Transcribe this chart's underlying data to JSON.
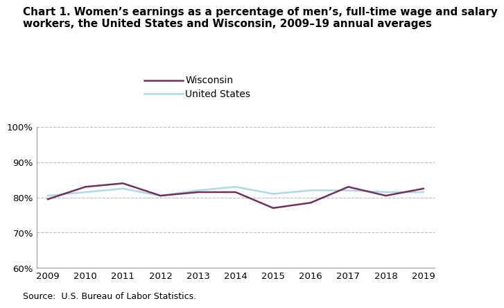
{
  "title_line1": "Chart 1. Women’s earnings as a percentage of men’s, full-time wage and salary",
  "title_line2": "workers, the United States and Wisconsin, 2009–19 annual averages",
  "years": [
    2009,
    2010,
    2011,
    2012,
    2013,
    2014,
    2015,
    2016,
    2017,
    2018,
    2019
  ],
  "wisconsin": [
    79.5,
    83.0,
    84.0,
    80.5,
    81.5,
    81.5,
    77.0,
    78.5,
    83.0,
    80.5,
    82.5
  ],
  "us": [
    80.5,
    81.5,
    82.5,
    80.5,
    82.0,
    83.0,
    81.0,
    82.0,
    82.0,
    81.5,
    81.5
  ],
  "wisconsin_color": "#722F5B",
  "us_color": "#ADD8E6",
  "ylim": [
    60,
    100
  ],
  "yticks": [
    60,
    70,
    80,
    90,
    100
  ],
  "source": "Source:  U.S. Bureau of Labor Statistics.",
  "grid_color": "#BBBBBB",
  "grid_linestyle": "--",
  "line_width": 1.8,
  "title_fontsize": 11,
  "legend_fontsize": 10,
  "tick_fontsize": 9.5,
  "source_fontsize": 9,
  "legend_wi_label": "Wisconsin",
  "legend_us_label": "United States"
}
